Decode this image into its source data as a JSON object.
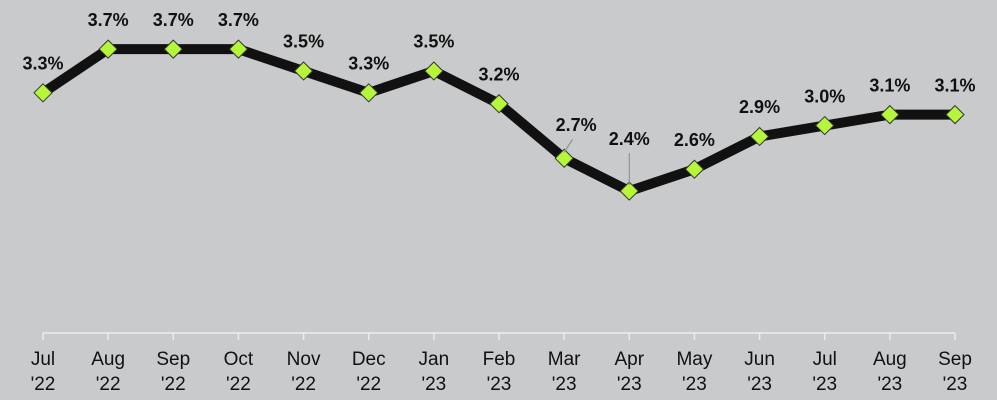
{
  "chart_data": {
    "type": "line",
    "categories": [
      "Jul '22",
      "Aug '22",
      "Sep '22",
      "Oct '22",
      "Nov '22",
      "Dec '22",
      "Jan '23",
      "Feb '23",
      "Mar '23",
      "Apr '23",
      "May '23",
      "Jun '23",
      "Jul '23",
      "Aug '23",
      "Sep '23"
    ],
    "values": [
      3.3,
      3.7,
      3.7,
      3.7,
      3.5,
      3.3,
      3.5,
      3.2,
      2.7,
      2.4,
      2.6,
      2.9,
      3.0,
      3.1,
      3.1
    ],
    "value_labels": [
      "3.3%",
      "3.7%",
      "3.7%",
      "3.7%",
      "3.5%",
      "3.3%",
      "3.5%",
      "3.2%",
      "2.7%",
      "2.4%",
      "2.6%",
      "2.9%",
      "3.0%",
      "3.1%",
      "3.1%"
    ],
    "color": "#111111",
    "marker_color": "#b5f53a",
    "ylim": [
      1.1,
      4.15
    ]
  }
}
